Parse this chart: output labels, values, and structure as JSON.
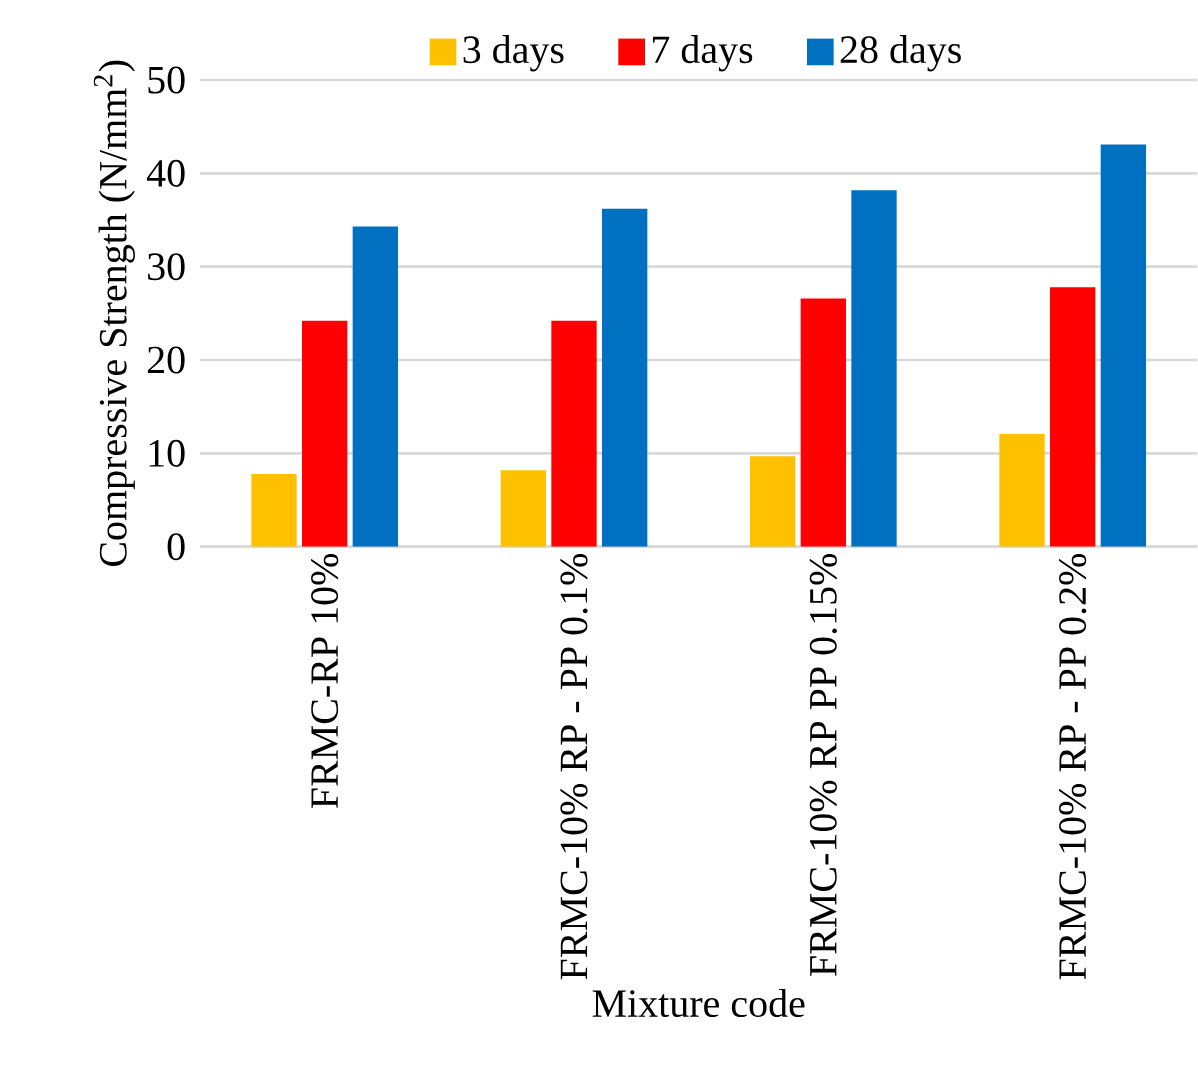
{
  "chart_data": {
    "type": "bar",
    "xlabel": "Mixture code",
    "ylabel": "Compressive Strength (N/mm$^{2}$)",
    "categories": [
      "FRMC-RP 10%",
      "FRMC-10% RP - PP 0.1%",
      "FRMC-10% RP PP 0.15%",
      "FRMC-10% RP - PP 0.2%"
    ],
    "series": [
      {
        "name": "3 days",
        "color": "#ffc000",
        "values": [
          7.8,
          8.2,
          9.7,
          12.1
        ]
      },
      {
        "name": "7 days",
        "color": "#ff0000",
        "values": [
          24.2,
          24.2,
          26.6,
          27.8
        ]
      },
      {
        "name": "28 days",
        "color": "#0070c0",
        "values": [
          34.3,
          36.2,
          38.2,
          43.1
        ]
      }
    ],
    "ylim": [
      0,
      50
    ],
    "yticks": [
      0,
      10,
      20,
      30,
      40,
      50
    ],
    "grid": "y",
    "legend": "top"
  }
}
